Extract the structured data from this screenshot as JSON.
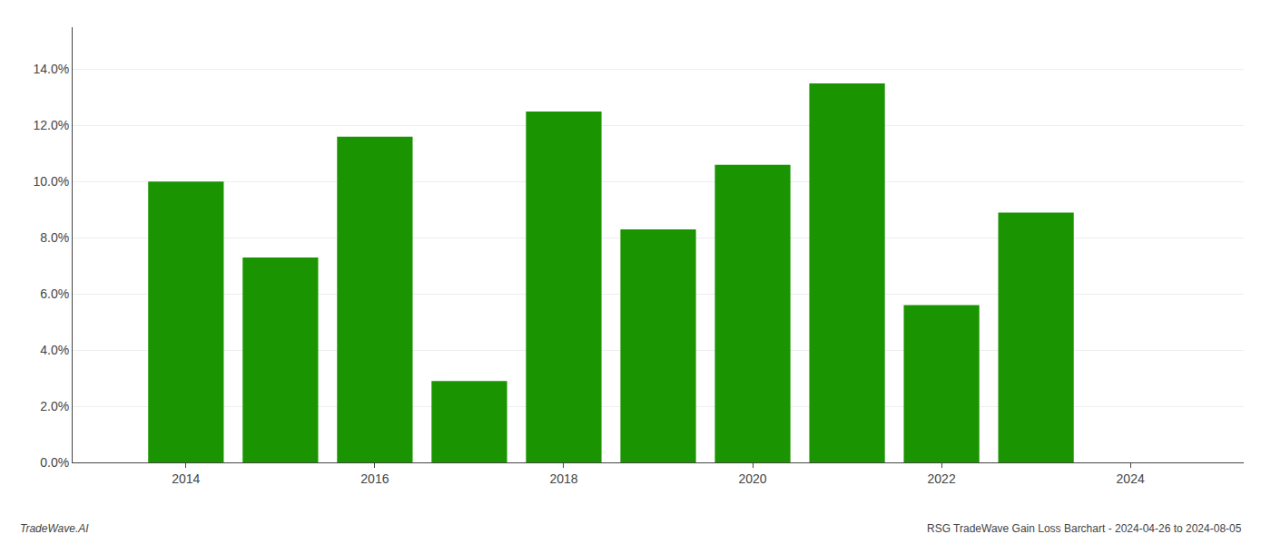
{
  "chart_data": {
    "type": "bar",
    "x": [
      2014,
      2015,
      2016,
      2017,
      2018,
      2019,
      2020,
      2021,
      2022,
      2023
    ],
    "values": [
      0.1,
      0.073,
      0.116,
      0.029,
      0.125,
      0.083,
      0.106,
      0.135,
      0.056,
      0.089
    ],
    "color": "#1a9400",
    "xlim": [
      2012.8,
      2025.2
    ],
    "xticks": [
      2014,
      2016,
      2018,
      2020,
      2022,
      2024
    ],
    "ylim": [
      0,
      0.155
    ],
    "yticks": [
      {
        "value": 0.0,
        "label": "0.0%"
      },
      {
        "value": 0.02,
        "label": "2.0%"
      },
      {
        "value": 0.04,
        "label": "4.0%"
      },
      {
        "value": 0.06,
        "label": "6.0%"
      },
      {
        "value": 0.08,
        "label": "8.0%"
      },
      {
        "value": 0.1,
        "label": "10.0%"
      },
      {
        "value": 0.12,
        "label": "12.0%"
      },
      {
        "value": 0.14,
        "label": "14.0%"
      }
    ],
    "grid": true,
    "annotations": [
      "TradeWave.AI",
      "RSG TradeWave Gain Loss Barchart - 2024-04-26 to 2024-08-05"
    ]
  }
}
